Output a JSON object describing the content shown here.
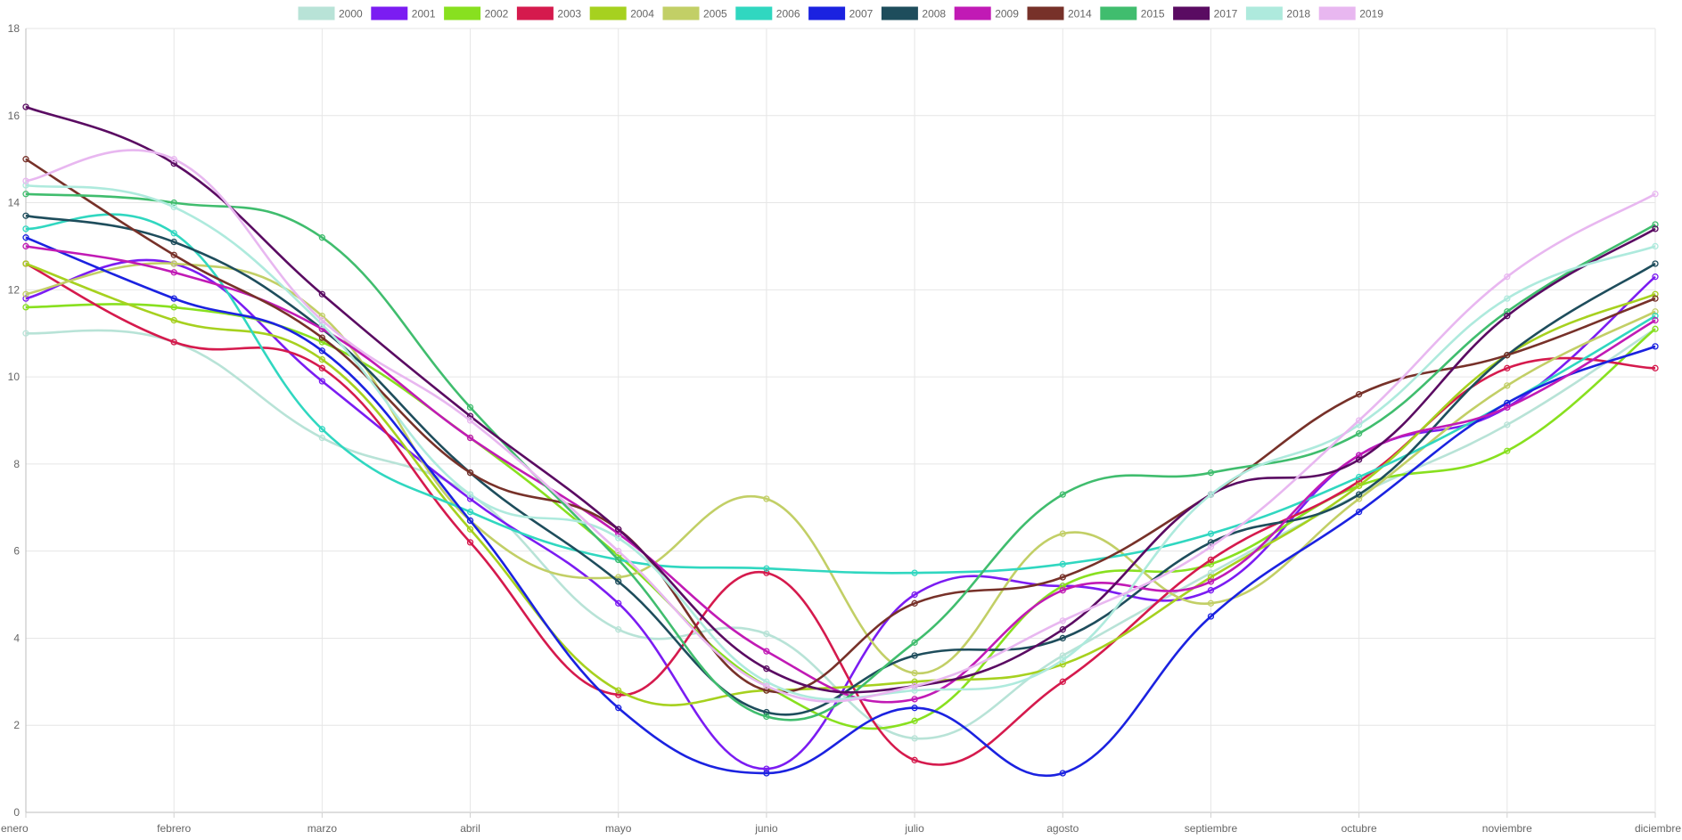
{
  "chart_data": {
    "type": "line",
    "categories": [
      "enero",
      "febrero",
      "marzo",
      "abril",
      "mayo",
      "junio",
      "julio",
      "agosto",
      "septiembre",
      "octubre",
      "noviembre",
      "diciembre"
    ],
    "ylim": [
      0,
      18
    ],
    "y_ticks": [
      "0",
      "2",
      "4",
      "6",
      "8",
      "10",
      "12",
      "14",
      "16",
      "18"
    ],
    "grid": true,
    "legend_position": "top",
    "series": [
      {
        "name": "2000",
        "color": "#b8e3d7",
        "values": [
          11.0,
          10.8,
          8.6,
          7.3,
          4.2,
          4.1,
          1.7,
          3.6,
          5.5,
          7.3,
          8.9,
          11.1
        ]
      },
      {
        "name": "2001",
        "color": "#7b1cf2",
        "values": [
          11.8,
          12.6,
          9.9,
          7.2,
          4.8,
          1.0,
          5.0,
          5.2,
          5.1,
          8.2,
          9.3,
          12.3
        ]
      },
      {
        "name": "2002",
        "color": "#88e01f",
        "values": [
          11.6,
          11.6,
          10.8,
          8.6,
          5.9,
          2.9,
          2.1,
          5.2,
          5.7,
          7.5,
          8.3,
          11.1
        ]
      },
      {
        "name": "2003",
        "color": "#d51a4d",
        "values": [
          12.6,
          10.8,
          10.2,
          6.2,
          2.7,
          5.5,
          1.2,
          3.0,
          5.8,
          7.6,
          10.2,
          10.2
        ]
      },
      {
        "name": "2004",
        "color": "#a6d11f",
        "values": [
          12.6,
          11.3,
          10.4,
          6.5,
          2.8,
          2.8,
          3.0,
          3.4,
          5.4,
          7.5,
          10.5,
          11.9
        ]
      },
      {
        "name": "2005",
        "color": "#c2cf66",
        "values": [
          11.9,
          12.6,
          11.4,
          6.7,
          5.4,
          7.2,
          3.2,
          6.4,
          4.8,
          7.2,
          9.8,
          11.5
        ]
      },
      {
        "name": "2006",
        "color": "#30d7c0",
        "values": [
          13.4,
          13.3,
          8.8,
          6.9,
          5.8,
          5.6,
          5.5,
          5.7,
          6.4,
          7.7,
          9.4,
          11.4
        ]
      },
      {
        "name": "2007",
        "color": "#1b22e0",
        "values": [
          13.2,
          11.8,
          10.6,
          6.7,
          2.4,
          0.9,
          2.4,
          0.9,
          4.5,
          6.9,
          9.4,
          10.7
        ]
      },
      {
        "name": "2008",
        "color": "#1e4d5c",
        "values": [
          13.7,
          13.1,
          11.1,
          7.8,
          5.3,
          2.3,
          3.6,
          4.0,
          6.2,
          7.3,
          10.5,
          12.6
        ]
      },
      {
        "name": "2009",
        "color": "#c11ab5",
        "values": [
          13.0,
          12.4,
          11.1,
          8.6,
          6.4,
          3.7,
          2.6,
          5.1,
          5.3,
          8.2,
          9.3,
          11.3
        ]
      },
      {
        "name": "2014",
        "color": "#773129",
        "values": [
          15.0,
          12.8,
          10.9,
          7.8,
          6.5,
          2.8,
          4.8,
          5.4,
          7.3,
          9.6,
          10.5,
          11.8
        ]
      },
      {
        "name": "2015",
        "color": "#40bd6e",
        "values": [
          14.2,
          14.0,
          13.2,
          9.3,
          5.8,
          2.2,
          3.9,
          7.3,
          7.8,
          8.7,
          11.5,
          13.5
        ]
      },
      {
        "name": "2017",
        "color": "#5a0b62",
        "values": [
          16.2,
          14.9,
          11.9,
          9.1,
          6.5,
          3.3,
          2.9,
          4.2,
          7.3,
          8.1,
          11.4,
          13.4
        ]
      },
      {
        "name": "2018",
        "color": "#aeeadd",
        "values": [
          14.4,
          13.9,
          11.2,
          7.3,
          6.3,
          3.0,
          2.8,
          3.5,
          7.3,
          8.9,
          11.8,
          13.0
        ]
      },
      {
        "name": "2019",
        "color": "#e8b7f0",
        "values": [
          14.5,
          15.0,
          11.3,
          9.0,
          6.0,
          2.9,
          2.9,
          4.4,
          6.1,
          9.0,
          12.3,
          14.2
        ]
      }
    ]
  }
}
